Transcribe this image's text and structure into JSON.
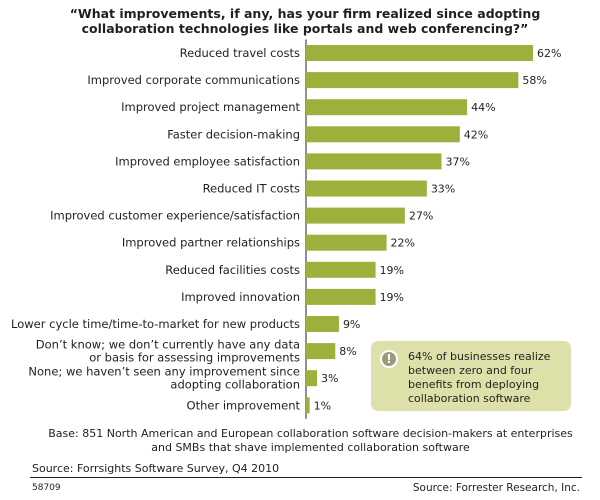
{
  "chart_data": {
    "type": "bar",
    "orientation": "horizontal",
    "title": "“What improvements, if any, has your firm realized since adopting collaboration technologies like portals and web conferencing?”",
    "categories": [
      [
        "Reduced travel costs"
      ],
      [
        "Improved corporate communications"
      ],
      [
        "Improved project management"
      ],
      [
        "Faster decision-making"
      ],
      [
        "Improved employee satisfaction"
      ],
      [
        "Reduced IT costs"
      ],
      [
        "Improved customer experience/satisfaction"
      ],
      [
        "Improved partner relationships"
      ],
      [
        "Reduced facilities costs"
      ],
      [
        "Improved innovation"
      ],
      [
        "Lower cycle time/time-to-market for new products"
      ],
      [
        "Don’t know; we don’t currently have any data",
        "or basis for assessing improvements"
      ],
      [
        "None; we haven’t seen any improvement since",
        "adopting collaboration"
      ],
      [
        "Other improvement"
      ]
    ],
    "values": [
      62,
      58,
      44,
      42,
      37,
      33,
      27,
      22,
      19,
      19,
      9,
      8,
      3,
      1
    ],
    "value_labels": [
      "62%",
      "58%",
      "44%",
      "42%",
      "37%",
      "33%",
      "27%",
      "22%",
      "19%",
      "19%",
      "9%",
      "8%",
      "3%",
      "1%"
    ],
    "xlim": [
      0,
      62
    ],
    "grid": false,
    "legend": "none",
    "bar_color": "#9bb13b",
    "callout": {
      "icon": "exclamation-icon",
      "text": "64% of businesses realize between zero and four benefits from deploying collaboration software",
      "background": "#dde1a9"
    },
    "base_note": "Base: 851 North American and European collaboration software decision-makers at enterprises and SMBs that shave implemented collaboration software",
    "source": "Source: Forrsights Software Survey, Q4 2010",
    "footer_id": "58709",
    "footer_source": "Source: Forrester Research, Inc."
  }
}
